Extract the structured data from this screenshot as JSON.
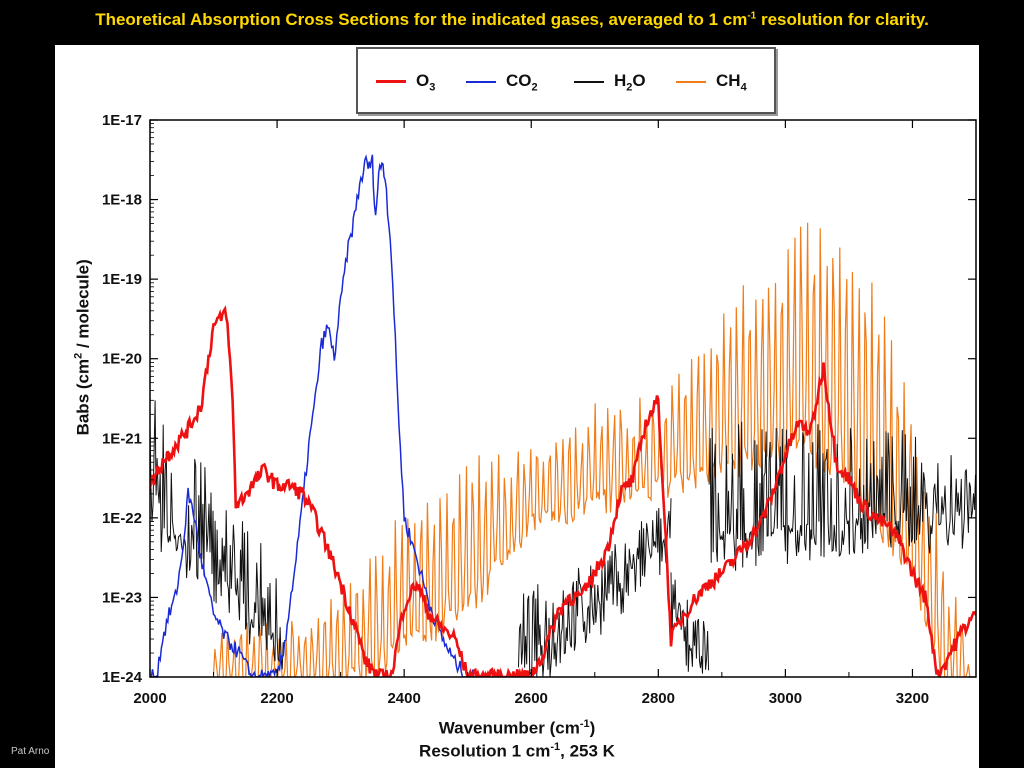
{
  "slide": {
    "title_pre": "Theoretical Absorption Cross Sections for the indicated gases, averaged to 1 cm",
    "title_sup": "-1",
    "title_post": " resolution for clarity.",
    "footer": "Pat Arno"
  },
  "colors": {
    "background": "#000000",
    "title": "#ffd800",
    "O3": "#ee1111",
    "CO2": "#1a2bd6",
    "H2O": "#111111",
    "CH4": "#f07d1a"
  },
  "chart_data": {
    "type": "line",
    "title": "",
    "xlabel_pre": "Wavenumber (cm",
    "xlabel_sup": "-1",
    "xlabel_post": ")",
    "subtitle_pre": "Resolution 1 cm",
    "subtitle_sup": "-1",
    "subtitle_post": ", 253 K",
    "ylabel_pre": "Babs (cm",
    "ylabel_sup": "2",
    "ylabel_post": " / molecule)",
    "xlim": [
      2000,
      3300
    ],
    "ylim": [
      1e-24,
      1e-17
    ],
    "yscale": "log",
    "grid": false,
    "legend_position": "top",
    "x_ticks": [
      "2000",
      "2200",
      "2400",
      "2600",
      "2800",
      "3000",
      "3200"
    ],
    "y_ticks": [
      "1E-17",
      "1E-18",
      "1E-19",
      "1E-20",
      "1E-21",
      "1E-22",
      "1E-23",
      "1E-24"
    ],
    "series": [
      {
        "name": "O3",
        "name_main": "O",
        "name_sub": "3",
        "x": [
          2000,
          2020,
          2040,
          2060,
          2080,
          2090,
          2100,
          2110,
          2120,
          2130,
          2135,
          2140,
          2160,
          2180,
          2200,
          2220,
          2240,
          2260,
          2280,
          2300,
          2320,
          2340,
          2360,
          2380,
          2400,
          2420,
          2440,
          2460,
          2480,
          2500,
          2520,
          2540,
          2560,
          2580,
          2600,
          2620,
          2640,
          2660,
          2680,
          2700,
          2720,
          2740,
          2760,
          2780,
          2800,
          2820,
          2840,
          2860,
          2880,
          2900,
          2920,
          2940,
          2960,
          2980,
          3000,
          3020,
          3040,
          3060,
          3080,
          3100,
          3120,
          3140,
          3160,
          3180,
          3200,
          3220,
          3240,
          3260,
          3280,
          3300
        ],
        "y": [
          2.5e-22,
          5e-22,
          8e-22,
          1.3e-21,
          2.5e-21,
          8e-21,
          2.5e-20,
          3e-20,
          4e-20,
          3e-21,
          1.5e-22,
          1.5e-22,
          2.5e-22,
          4e-22,
          2.5e-22,
          2.5e-22,
          2e-22,
          1e-22,
          4e-23,
          1.5e-23,
          5e-24,
          1.5e-24,
          1e-24,
          1e-24,
          8e-24,
          1.5e-23,
          6e-24,
          4e-24,
          3e-24,
          1e-24,
          1e-24,
          1e-24,
          1e-24,
          1e-24,
          1e-24,
          2e-24,
          6e-24,
          1e-23,
          1e-23,
          2e-23,
          4e-23,
          2e-22,
          3e-22,
          1.5e-21,
          3e-21,
          3e-24,
          6e-24,
          1e-23,
          1.5e-23,
          2e-23,
          3e-23,
          5e-23,
          8e-23,
          2e-22,
          6e-22,
          1.5e-21,
          1.2e-21,
          8e-21,
          5e-22,
          3e-22,
          1.5e-22,
          1e-22,
          8e-23,
          5e-23,
          2e-23,
          1e-23,
          1e-24,
          2e-24,
          4e-24,
          6e-24
        ]
      },
      {
        "name": "CO2",
        "name_main": "CO",
        "name_sub": "2",
        "x": [
          2000,
          2010,
          2020,
          2030,
          2040,
          2050,
          2060,
          2070,
          2080,
          2100,
          2120,
          2140,
          2160,
          2180,
          2200,
          2210,
          2220,
          2230,
          2240,
          2250,
          2260,
          2270,
          2280,
          2290,
          2300,
          2310,
          2320,
          2330,
          2340,
          2345,
          2350,
          2355,
          2360,
          2365,
          2370,
          2380,
          2390,
          2400,
          2420,
          2440,
          2460,
          2480,
          2500,
          2520
        ],
        "y": [
          1e-24,
          1e-24,
          3e-24,
          6e-24,
          1e-23,
          3e-23,
          2e-22,
          1e-22,
          3e-23,
          6e-24,
          3e-24,
          2e-24,
          1e-24,
          1e-24,
          1e-24,
          2e-24,
          8e-24,
          3e-23,
          1.5e-22,
          8e-22,
          3e-21,
          1.5e-20,
          2.5e-20,
          1e-20,
          5e-20,
          2e-19,
          5e-19,
          1.5e-18,
          3e-18,
          2.5e-18,
          3e-18,
          6e-19,
          2e-18,
          3e-18,
          2e-18,
          2e-19,
          3e-21,
          1e-22,
          3e-23,
          8e-24,
          3e-24,
          1.5e-24,
          1e-24,
          1e-24
        ]
      },
      {
        "name": "H2O",
        "name_main": "H",
        "name_sub": "2",
        "name_post": "O",
        "ranges": [
          [
            2000,
            2210,
            1.2e-22,
            2e-24,
            1e-21,
            5e-24
          ],
          [
            2580,
            2820,
            1e-24,
            5e-23,
            3e-24,
            2e-23
          ],
          [
            2820,
            2880,
            6e-24,
            1e-24,
            4e-24,
            1e-24
          ],
          [
            2880,
            3300,
            5e-23,
            1e-22,
            5e-22,
            3e-22
          ]
        ]
      },
      {
        "name": "CH4",
        "name_main": "CH",
        "name_sub": "4",
        "envelope_x": [
          2100,
          2200,
          2300,
          2400,
          2500,
          2600,
          2700,
          2800,
          2900,
          2950,
          3000,
          3020,
          3050,
          3100,
          3150,
          3200,
          3250,
          3300
        ],
        "envelope_peak": [
          3e-24,
          5e-24,
          1e-23,
          1e-22,
          4e-22,
          8e-22,
          2e-21,
          3e-21,
          3e-20,
          1e-19,
          2e-19,
          8e-19,
          5e-19,
          2e-19,
          5e-20,
          2e-21,
          3e-23,
          1e-24
        ],
        "envelope_trough": [
          1e-24,
          1e-24,
          1e-24,
          3e-24,
          1e-23,
          1e-22,
          2e-22,
          3e-22,
          5e-22,
          8e-22,
          1e-21,
          1e-21,
          8e-22,
          5e-22,
          1e-22,
          3e-23,
          1e-24,
          1e-24
        ]
      }
    ]
  }
}
